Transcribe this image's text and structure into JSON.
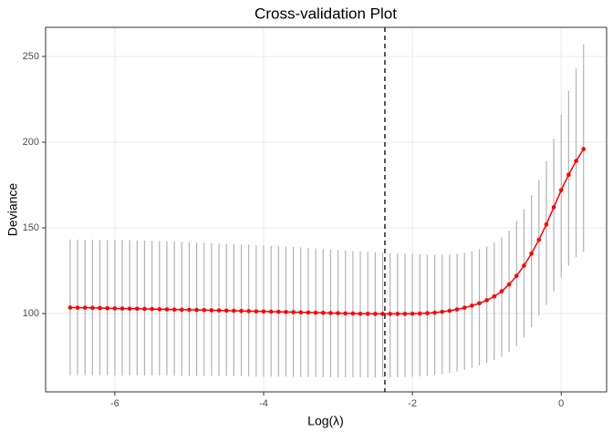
{
  "chart_data": {
    "type": "errorbar-line",
    "title": "Cross-validation Plot",
    "x_label": "Log(λ)",
    "y_label": "Deviance",
    "x": [
      -6.6,
      -6.5,
      -6.4,
      -6.3,
      -6.2,
      -6.1,
      -6.0,
      -5.9,
      -5.8,
      -5.7,
      -5.6,
      -5.5,
      -5.4,
      -5.3,
      -5.2,
      -5.1,
      -5.0,
      -4.9,
      -4.8,
      -4.7,
      -4.6,
      -4.5,
      -4.4,
      -4.3,
      -4.2,
      -4.1,
      -4.0,
      -3.9,
      -3.8,
      -3.7,
      -3.6,
      -3.5,
      -3.4,
      -3.3,
      -3.2,
      -3.1,
      -3.0,
      -2.9,
      -2.8,
      -2.7,
      -2.6,
      -2.5,
      -2.4,
      -2.3,
      -2.2,
      -2.1,
      -2.0,
      -1.9,
      -1.8,
      -1.7,
      -1.6,
      -1.5,
      -1.4,
      -1.3,
      -1.2,
      -1.1,
      -1.0,
      -0.9,
      -0.8,
      -0.7,
      -0.6,
      -0.5,
      -0.4,
      -0.3,
      -0.2,
      -0.1,
      0.0,
      0.1,
      0.2,
      0.3
    ],
    "values": [
      103.5,
      103.4,
      103.4,
      103.3,
      103.2,
      103.1,
      103.0,
      102.9,
      102.8,
      102.8,
      102.7,
      102.6,
      102.5,
      102.4,
      102.3,
      102.2,
      102.2,
      102.1,
      102.0,
      101.9,
      101.8,
      101.7,
      101.6,
      101.5,
      101.4,
      101.3,
      101.2,
      101.1,
      101.0,
      100.9,
      100.8,
      100.7,
      100.6,
      100.5,
      100.4,
      100.3,
      100.2,
      100.1,
      100.0,
      99.9,
      99.9,
      99.8,
      99.8,
      99.8,
      99.8,
      99.8,
      99.9,
      100.0,
      100.2,
      100.5,
      101.0,
      101.6,
      102.4,
      103.4,
      104.6,
      106.0,
      107.8,
      110.0,
      113.0,
      117.0,
      122.0,
      128.0,
      135.0,
      143.0,
      152.0,
      162.0,
      172.0,
      181.0,
      189.0,
      196.0
    ],
    "upper": [
      143.2,
      143.2,
      143.1,
      143.1,
      143.0,
      143.0,
      142.9,
      142.9,
      142.8,
      142.7,
      142.6,
      142.5,
      142.4,
      142.3,
      142.1,
      141.9,
      141.7,
      141.5,
      141.3,
      141.1,
      140.9,
      140.7,
      140.5,
      140.3,
      140.1,
      139.9,
      139.7,
      139.5,
      139.3,
      139.1,
      138.9,
      138.6,
      138.3,
      138.0,
      137.7,
      137.4,
      137.1,
      136.8,
      136.5,
      136.2,
      136.0,
      135.8,
      135.6,
      135.4,
      135.2,
      135.0,
      134.8,
      134.6,
      134.4,
      134.3,
      134.3,
      134.5,
      134.9,
      135.5,
      136.4,
      137.6,
      139.2,
      141.5,
      144.5,
      148.5,
      154,
      161,
      169,
      178,
      189,
      202,
      216,
      230,
      243,
      257
    ],
    "lower": [
      64.0,
      64.0,
      64.0,
      64.0,
      64.0,
      64.0,
      63.9,
      63.9,
      63.9,
      63.9,
      63.9,
      63.8,
      63.8,
      63.8,
      63.8,
      63.7,
      63.7,
      63.7,
      63.7,
      63.6,
      63.6,
      63.6,
      63.5,
      63.5,
      63.4,
      63.4,
      63.3,
      63.3,
      63.2,
      63.2,
      63.1,
      63.1,
      63.0,
      63.0,
      62.9,
      62.9,
      62.9,
      62.8,
      62.8,
      62.8,
      62.8,
      62.8,
      62.8,
      62.8,
      62.9,
      63.0,
      63.2,
      63.4,
      63.7,
      64.1,
      64.6,
      65.3,
      66.1,
      67.1,
      68.3,
      69.7,
      71.2,
      72.9,
      74.8,
      77.5,
      81,
      86,
      92,
      99,
      105,
      113,
      121,
      128,
      133,
      136
    ],
    "color": "#ff0000",
    "error_color": "#b3b3b3",
    "vline": -2.37,
    "xlim": [
      -6.93,
      0.61
    ],
    "ylim": [
      54.3,
      267
    ],
    "xticks": [
      -6,
      -4,
      -2,
      0
    ],
    "yticks": [
      100,
      150,
      200,
      250
    ],
    "grid": true
  }
}
